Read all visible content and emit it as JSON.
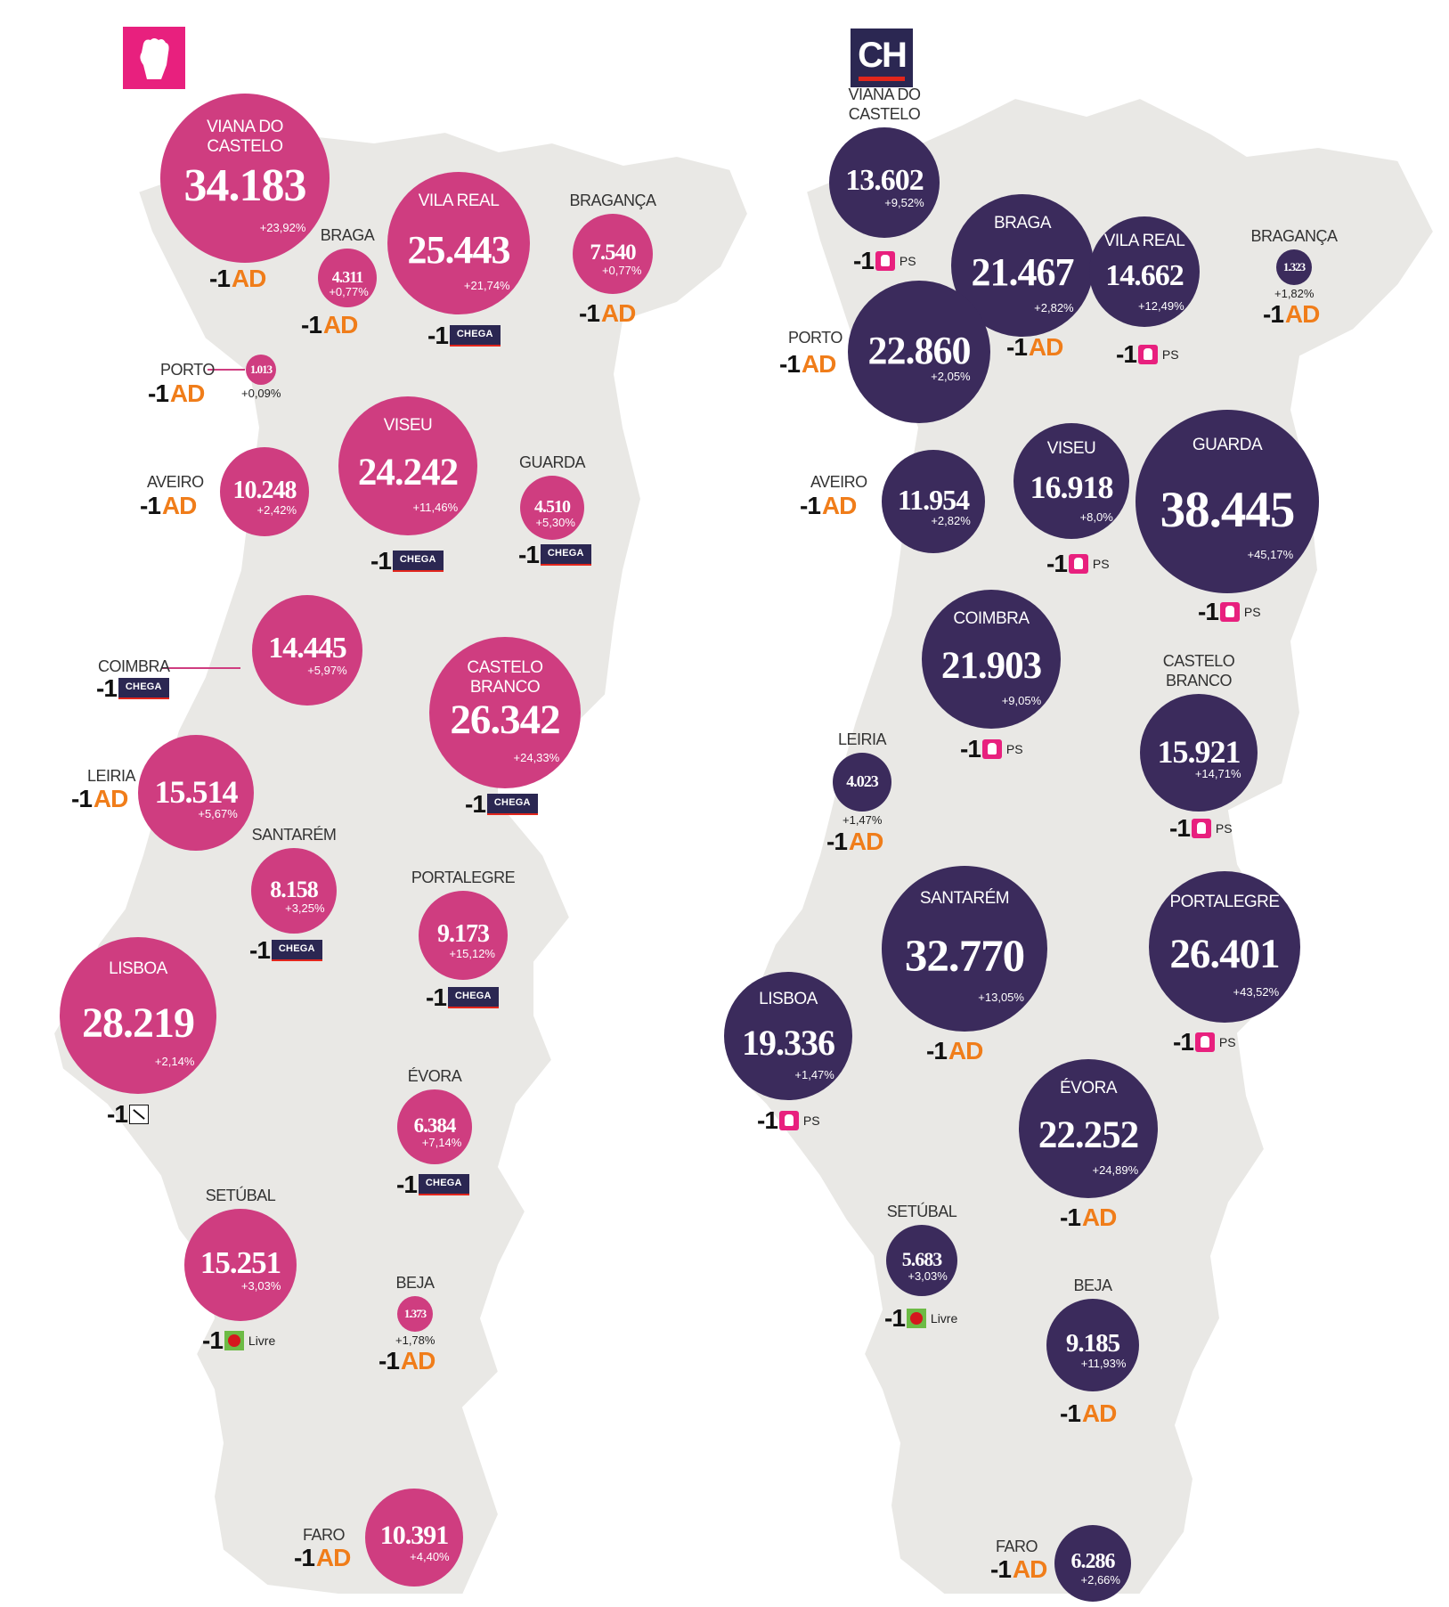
{
  "left_panel": {
    "party_logo": {
      "icon": "ps-fist-icon",
      "color": "#e8207e"
    },
    "districts": [
      {
        "name": "VIANA DO CASTELO",
        "value": "34.183",
        "pct": "+23,92%",
        "seat": "AD"
      },
      {
        "name": "BRAGA",
        "value": "4.311",
        "pct": "+0,77%",
        "seat": "AD"
      },
      {
        "name": "VILA REAL",
        "value": "25.443",
        "pct": "+21,74%",
        "seat": "CHEGA"
      },
      {
        "name": "BRAGANÇA",
        "value": "7.540",
        "pct": "+0,77%",
        "seat": "AD"
      },
      {
        "name": "PORTO",
        "value": "1.013",
        "pct": "+0,09%",
        "seat": "AD"
      },
      {
        "name": "AVEIRO",
        "value": "10.248",
        "pct": "+2,42%",
        "seat": "AD"
      },
      {
        "name": "VISEU",
        "value": "24.242",
        "pct": "+11,46%",
        "seat": "CHEGA"
      },
      {
        "name": "GUARDA",
        "value": "4.510",
        "pct": "+5,30%",
        "seat": "CHEGA"
      },
      {
        "name": "COIMBRA",
        "value": "14.445",
        "pct": "+5,97%",
        "seat": "CHEGA"
      },
      {
        "name": "CASTELO BRANCO",
        "value": "26.342",
        "pct": "+24,33%",
        "seat": "CHEGA"
      },
      {
        "name": "LEIRIA",
        "value": "15.514",
        "pct": "+5,67%",
        "seat": "AD"
      },
      {
        "name": "SANTARÉM",
        "value": "8.158",
        "pct": "+3,25%",
        "seat": "CHEGA"
      },
      {
        "name": "PORTALEGRE",
        "value": "9.173",
        "pct": "+15,12%",
        "seat": "CHEGA"
      },
      {
        "name": "LISBOA",
        "value": "28.219",
        "pct": "+2,14%",
        "seat": "IL"
      },
      {
        "name": "ÉVORA",
        "value": "6.384",
        "pct": "+7,14%",
        "seat": "CHEGA"
      },
      {
        "name": "SETÚBAL",
        "value": "15.251",
        "pct": "+3,03%",
        "seat": "Livre"
      },
      {
        "name": "BEJA",
        "value": "1.373",
        "pct": "+1,78%",
        "seat": "AD"
      },
      {
        "name": "FARO",
        "value": "10.391",
        "pct": "+4,40%",
        "seat": "AD"
      }
    ]
  },
  "right_panel": {
    "party_logo": {
      "text": "CH",
      "color": "#2b2752"
    },
    "districts": [
      {
        "name": "VIANA DO CASTELO",
        "value": "13.602",
        "pct": "+9,52%",
        "seat": "PS"
      },
      {
        "name": "BRAGA",
        "value": "21.467",
        "pct": "+2,82%",
        "seat": "AD"
      },
      {
        "name": "VILA REAL",
        "value": "14.662",
        "pct": "+12,49%",
        "seat": "PS"
      },
      {
        "name": "BRAGANÇA",
        "value": "1.323",
        "pct": "+1,82%",
        "seat": "AD"
      },
      {
        "name": "PORTO",
        "value": "22.860",
        "pct": "+2,05%",
        "seat": "AD"
      },
      {
        "name": "AVEIRO",
        "value": "11.954",
        "pct": "+2,82%",
        "seat": "AD"
      },
      {
        "name": "VISEU",
        "value": "16.918",
        "pct": "+8,0%",
        "seat": "PS"
      },
      {
        "name": "GUARDA",
        "value": "38.445",
        "pct": "+45,17%",
        "seat": "PS"
      },
      {
        "name": "COIMBRA",
        "value": "21.903",
        "pct": "+9,05%",
        "seat": "PS"
      },
      {
        "name": "LEIRIA",
        "value": "4.023",
        "pct": "+1,47%",
        "seat": "AD"
      },
      {
        "name": "CASTELO BRANCO",
        "value": "15.921",
        "pct": "+14,71%",
        "seat": "PS"
      },
      {
        "name": "SANTARÉM",
        "value": "32.770",
        "pct": "+13,05%",
        "seat": "AD"
      },
      {
        "name": "PORTALEGRE",
        "value": "26.401",
        "pct": "+43,52%",
        "seat": "PS"
      },
      {
        "name": "LISBOA",
        "value": "19.336",
        "pct": "+1,47%",
        "seat": "PS"
      },
      {
        "name": "ÉVORA",
        "value": "22.252",
        "pct": "+24,89%",
        "seat": "AD"
      },
      {
        "name": "SETÚBAL",
        "value": "5.683",
        "pct": "+3,03%",
        "seat": "Livre"
      },
      {
        "name": "BEJA",
        "value": "9.185",
        "pct": "+11,93%",
        "seat": "AD"
      },
      {
        "name": "FARO",
        "value": "6.286",
        "pct": "+2,66%",
        "seat": "AD"
      }
    ]
  },
  "seat_prefix": "-1",
  "seat_labels": {
    "AD": "AD",
    "CHEGA": "CHEGA",
    "PS": "PS",
    "Livre": "Livre"
  },
  "colors": {
    "ps_bubble": "#cf3d80",
    "ch_bubble": "#3b2b5c",
    "map": "#e9e8e5",
    "ad": "#f07d1a"
  }
}
